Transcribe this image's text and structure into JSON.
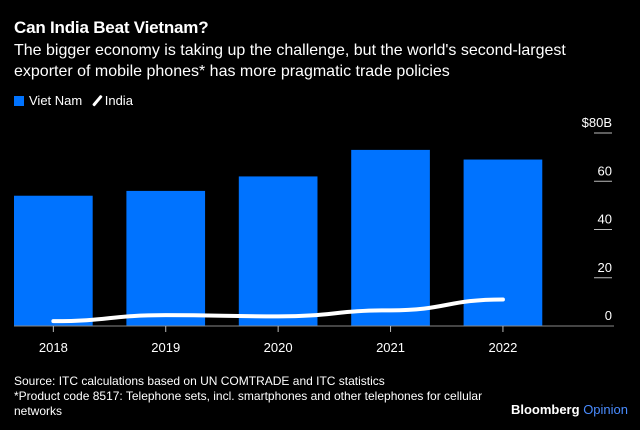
{
  "chart_data": {
    "type": "bar",
    "title": "Can India Beat Vietnam?",
    "subtitle": "The bigger economy is taking up the challenge, but the world's second-largest exporter of mobile phones* has more pragmatic trade policies",
    "categories": [
      "2018",
      "2019",
      "2020",
      "2021",
      "2022"
    ],
    "series": [
      {
        "name": "Viet Nam",
        "kind": "bar",
        "color": "#0073ff",
        "values": [
          54,
          56,
          62,
          73,
          69
        ]
      },
      {
        "name": "India",
        "kind": "line",
        "color": "#ffffff",
        "values": [
          2,
          4.5,
          4,
          6.5,
          11
        ]
      }
    ],
    "xlabel": "",
    "ylabel": "",
    "ylim": [
      0,
      80
    ],
    "yticks": [
      0,
      20,
      40,
      60,
      80
    ],
    "ytick_labels": [
      "0",
      "20",
      "40",
      "60",
      "$80B"
    ],
    "legend_position": "top-left",
    "grid": false,
    "source": "Source: ITC calculations based on UN COMTRADE and ITC statistics",
    "footnote": "*Product code 8517: Telephone sets, incl. smartphones and other telephones for cellular networks"
  },
  "brand": {
    "name": "Bloomberg",
    "suffix": "Opinion"
  },
  "colors": {
    "background": "#000000",
    "bar": "#0073ff",
    "line": "#ffffff",
    "accent": "#4a8cff"
  }
}
